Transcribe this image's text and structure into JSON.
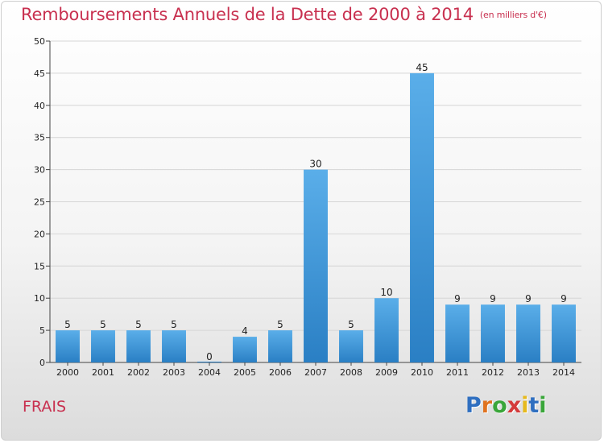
{
  "chart_data": {
    "type": "bar",
    "title": "Remboursements Annuels de la Dette de 2000 à 2014",
    "unit_note": "(en milliers d'€)",
    "categories": [
      "2000",
      "2001",
      "2002",
      "2003",
      "2004",
      "2005",
      "2006",
      "2007",
      "2008",
      "2009",
      "2010",
      "2011",
      "2012",
      "2013",
      "2014"
    ],
    "values": [
      5,
      5,
      5,
      5,
      0,
      4,
      5,
      30,
      5,
      10,
      45,
      9,
      9,
      9,
      9
    ],
    "ylim": [
      0,
      50
    ],
    "yticks": [
      0,
      5,
      10,
      15,
      20,
      25,
      30,
      35,
      40,
      45,
      50
    ],
    "xlabel": "",
    "ylabel": "",
    "grid": true,
    "bar_color_top": "#5aaee9",
    "bar_color_bottom": "#2a7fc4"
  },
  "commune": "FRAIS",
  "logo": {
    "letters": [
      "P",
      "r",
      "o",
      "x",
      "i",
      "t",
      "i"
    ],
    "colors": [
      "#2f6fc0",
      "#e0731f",
      "#3aa63a",
      "#d43a3a",
      "#e6b91e",
      "#2f6fc0",
      "#3aa63a"
    ]
  }
}
